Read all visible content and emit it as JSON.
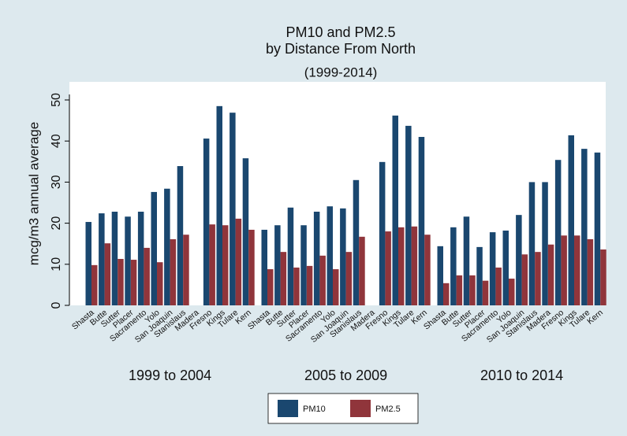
{
  "chart_data": {
    "type": "bar",
    "title": [
      "PM10 and PM2.5",
      "by Distance From North"
    ],
    "subtitle": "(1999-2014)",
    "ylabel": "mcg/m3 annual average",
    "groups": [
      "1999 to 2004",
      "2005 to 2009",
      "2010 to 2014"
    ],
    "categories": [
      "Shasta",
      "Butte",
      "Sutter",
      "Placer",
      "Sacramento",
      "Yolo",
      "San Joaquin",
      "Stanislaus",
      "Madera",
      "Fresno",
      "Kings",
      "Tulare",
      "Kern"
    ],
    "series": [
      {
        "name": "PM10",
        "color": "#1a476f",
        "values": [
          [
            20.3,
            22.4,
            22.8,
            21.6,
            22.8,
            27.6,
            28.4,
            33.9,
            null,
            40.6,
            48.5,
            46.9,
            35.8
          ],
          [
            18.4,
            19.5,
            23.8,
            19.5,
            22.8,
            24.1,
            23.6,
            30.5,
            null,
            34.9,
            46.2,
            43.7,
            41.0
          ],
          [
            14.4,
            19.0,
            21.6,
            14.2,
            17.8,
            18.2,
            22.0,
            30.0,
            30.0,
            35.4,
            41.4,
            38.1,
            37.2
          ]
        ]
      },
      {
        "name": "PM2.5",
        "color": "#90353b",
        "values": [
          [
            9.8,
            15.1,
            11.3,
            11.1,
            14.0,
            10.5,
            16.1,
            17.2,
            null,
            19.7,
            19.5,
            21.1,
            18.4
          ],
          [
            8.8,
            13.0,
            9.2,
            9.6,
            12.1,
            8.8,
            13.0,
            16.7,
            null,
            18.0,
            19.0,
            19.2,
            17.2
          ],
          [
            5.4,
            7.3,
            7.3,
            6.0,
            9.2,
            6.5,
            12.4,
            13.0,
            14.8,
            17.0,
            17.0,
            16.1,
            13.6
          ]
        ]
      }
    ],
    "ylim": [
      0,
      50
    ],
    "yticks": [
      0,
      10,
      20,
      30,
      40,
      50
    ],
    "grid": false
  }
}
